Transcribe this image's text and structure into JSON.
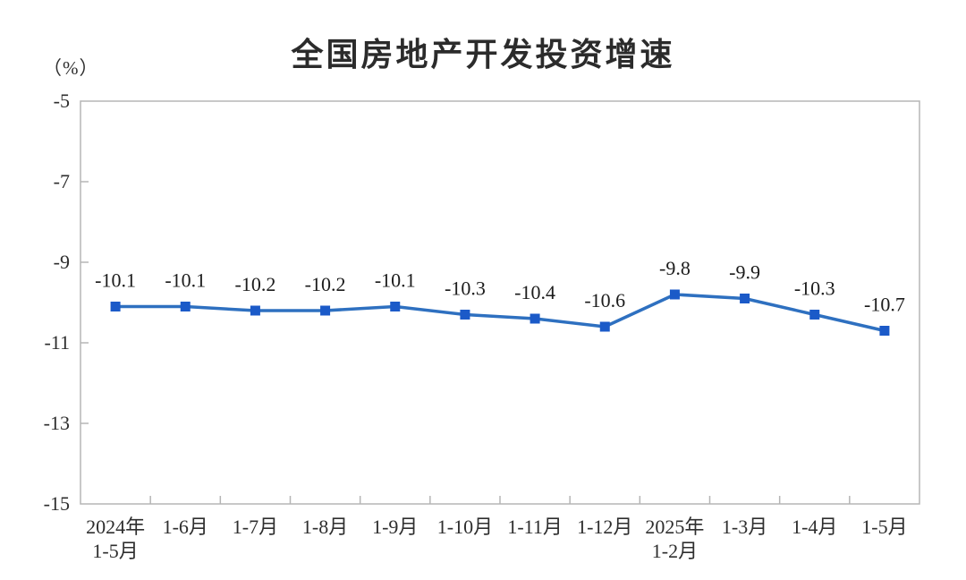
{
  "chart_data": {
    "type": "line",
    "title": "全国房地产开发投资增速",
    "unit_label": "（%）",
    "categories": [
      "2024年\n1-5月",
      "1-6月",
      "1-7月",
      "1-8月",
      "1-9月",
      "1-10月",
      "1-11月",
      "1-12月",
      "2025年\n1-2月",
      "1-3月",
      "1-4月",
      "1-5月"
    ],
    "values": [
      -10.1,
      -10.1,
      -10.2,
      -10.2,
      -10.1,
      -10.3,
      -10.4,
      -10.6,
      -9.8,
      -9.9,
      -10.3,
      -10.7
    ],
    "data_labels": [
      "-10.1",
      "-10.1",
      "-10.2",
      "-10.2",
      "-10.1",
      "-10.3",
      "-10.4",
      "-10.6",
      "-9.8",
      "-9.9",
      "-10.3",
      "-10.7"
    ],
    "ylim": [
      -15,
      -5
    ],
    "yticks": [
      -5,
      -7,
      -9,
      -11,
      -13,
      -15
    ],
    "ytick_labels": [
      "-5",
      "-7",
      "-9",
      "-11",
      "-13",
      "-15"
    ],
    "xlabel": "",
    "ylabel": "（%）",
    "grid": "off",
    "legend": "none",
    "colors": {
      "line": "#2e70c0",
      "marker": "#1b5ac8",
      "axis": "#b5b5b5",
      "title_text": "#2b2b2b",
      "tick_text": "#2e2e2e",
      "label_text": "#1c1c1c",
      "background": "#ffffff"
    }
  }
}
